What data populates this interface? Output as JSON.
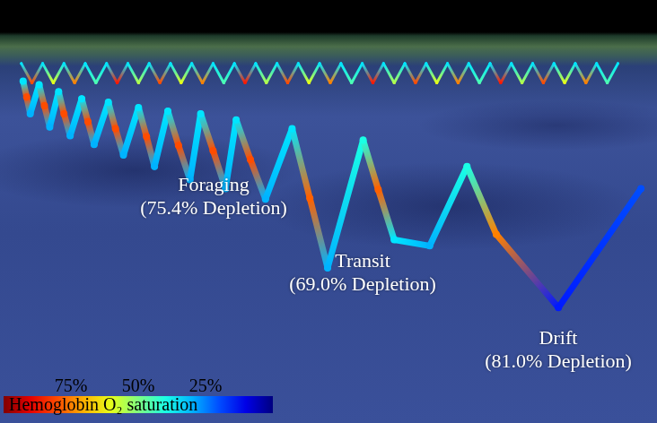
{
  "chart_data": {
    "type": "line",
    "xlim": [
      0,
      732
    ],
    "ylim": [
      0,
      472
    ],
    "tick_labels": false,
    "grid": false,
    "series": [
      {
        "x": [
          20,
          32,
          44,
          56,
          68,
          80,
          92,
          104,
          116,
          128,
          140,
          152,
          164,
          176,
          188,
          200,
          212,
          224,
          236,
          248,
          260,
          272,
          284,
          296,
          308,
          320,
          332,
          344,
          356,
          368,
          380,
          392,
          404,
          416,
          428,
          440,
          452,
          464,
          476,
          488,
          500,
          512,
          524,
          536,
          548,
          560,
          572,
          584,
          596,
          608,
          620,
          632,
          644,
          656,
          668,
          680,
          692
        ],
        "y": [
          404,
          382,
          404,
          382,
          404,
          382,
          404,
          382,
          404,
          382,
          404,
          382,
          404,
          382,
          404,
          382,
          404,
          382,
          404,
          382,
          404,
          382,
          404,
          382,
          404,
          382,
          404,
          382,
          404,
          382,
          404,
          382,
          404,
          382,
          404,
          382,
          404,
          382,
          404,
          382,
          404,
          382,
          404,
          382,
          404,
          382,
          404,
          382,
          404,
          382,
          404,
          382,
          404,
          382,
          404,
          382,
          404
        ],
        "saturation": [
          35,
          80,
          35,
          60,
          35,
          75,
          35,
          45,
          35,
          85,
          35,
          55,
          35,
          80,
          35,
          60,
          35,
          75,
          35,
          45,
          35,
          85,
          35,
          55,
          35,
          80,
          35,
          60,
          35,
          75,
          35,
          45,
          35,
          85,
          35,
          55,
          35,
          80,
          35,
          60,
          35,
          75,
          35,
          45,
          35,
          85,
          35,
          55,
          35,
          80,
          35,
          60,
          35,
          75,
          35,
          45,
          35
        ]
      },
      {
        "x": [
          22,
          26,
          30,
          40,
          46,
          52,
          62,
          68,
          75,
          88,
          95,
          102,
          118,
          126,
          135,
          152,
          161,
          170,
          185,
          197,
          210,
          222,
          236,
          250,
          262,
          278,
          295,
          325,
          345,
          365,
          405,
          422,
          440,
          480,
          522,
          555,
          625,
          718
        ],
        "y": [
          384,
          366,
          347,
          380,
          356,
          332,
          372,
          347,
          322,
          364,
          338,
          312,
          360,
          330,
          300,
          354,
          321,
          287,
          350,
          311,
          272,
          347,
          305,
          262,
          340,
          295,
          250,
          330,
          251,
          172,
          317,
          261,
          204,
          197,
          287,
          210,
          127,
          262
        ],
        "saturation": [
          35,
          80,
          30,
          35,
          80,
          30,
          35,
          80,
          30,
          35,
          80,
          30,
          35,
          80,
          30,
          35,
          80,
          30,
          35,
          80,
          30,
          35,
          80,
          30,
          35,
          80,
          30,
          35,
          78,
          30,
          40,
          78,
          35,
          30,
          40,
          75,
          15,
          20
        ]
      }
    ],
    "annotations": [
      {
        "text": "Foraging",
        "detail": "(75.4% Depletion)"
      },
      {
        "text": "Transit",
        "detail": "(69.0% Depletion)"
      },
      {
        "text": "Drift",
        "detail": "(81.0% Depletion)"
      }
    ],
    "colorbar": {
      "title": "Hemoglobin O₂ saturation",
      "range": [
        100,
        0
      ],
      "ticks": [
        {
          "value": 75,
          "label": "75%"
        },
        {
          "value": 50,
          "label": "50%"
        },
        {
          "value": 25,
          "label": "25%"
        }
      ]
    }
  }
}
